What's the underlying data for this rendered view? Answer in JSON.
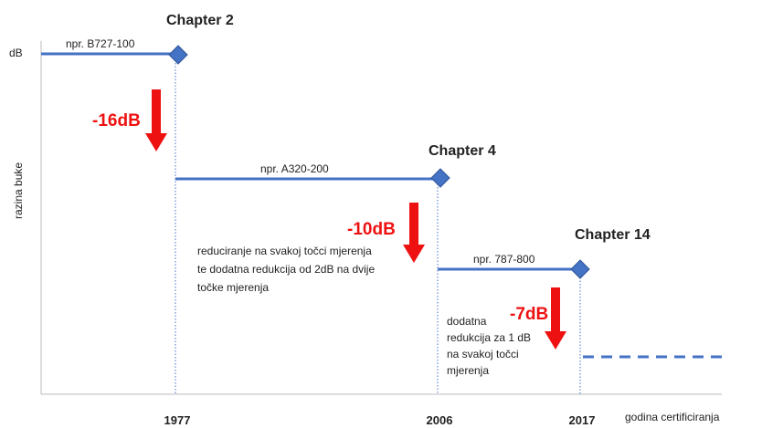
{
  "axes": {
    "y_label": "razina buke",
    "y_unit": "dB",
    "x_label": "godina certificiranja"
  },
  "steps": [
    {
      "chapter": "Chapter 2",
      "year": "1977",
      "example": "npr. B727-100",
      "reduction": "-16dB"
    },
    {
      "chapter": "Chapter 4",
      "year": "2006",
      "example": "npr. A320-200",
      "reduction": "-10dB",
      "note": [
        "reduciranje na svakoj točci mjerenja",
        "te dodatna redukcija od 2dB na dvije",
        "točke mjerenja"
      ]
    },
    {
      "chapter": "Chapter 14",
      "year": "2017",
      "example": "npr. 787-800",
      "reduction": "-7dB",
      "note": [
        "dodatna",
        "redukcija za 1 dB",
        "na svakoj točci",
        "mjerenja"
      ]
    }
  ]
}
